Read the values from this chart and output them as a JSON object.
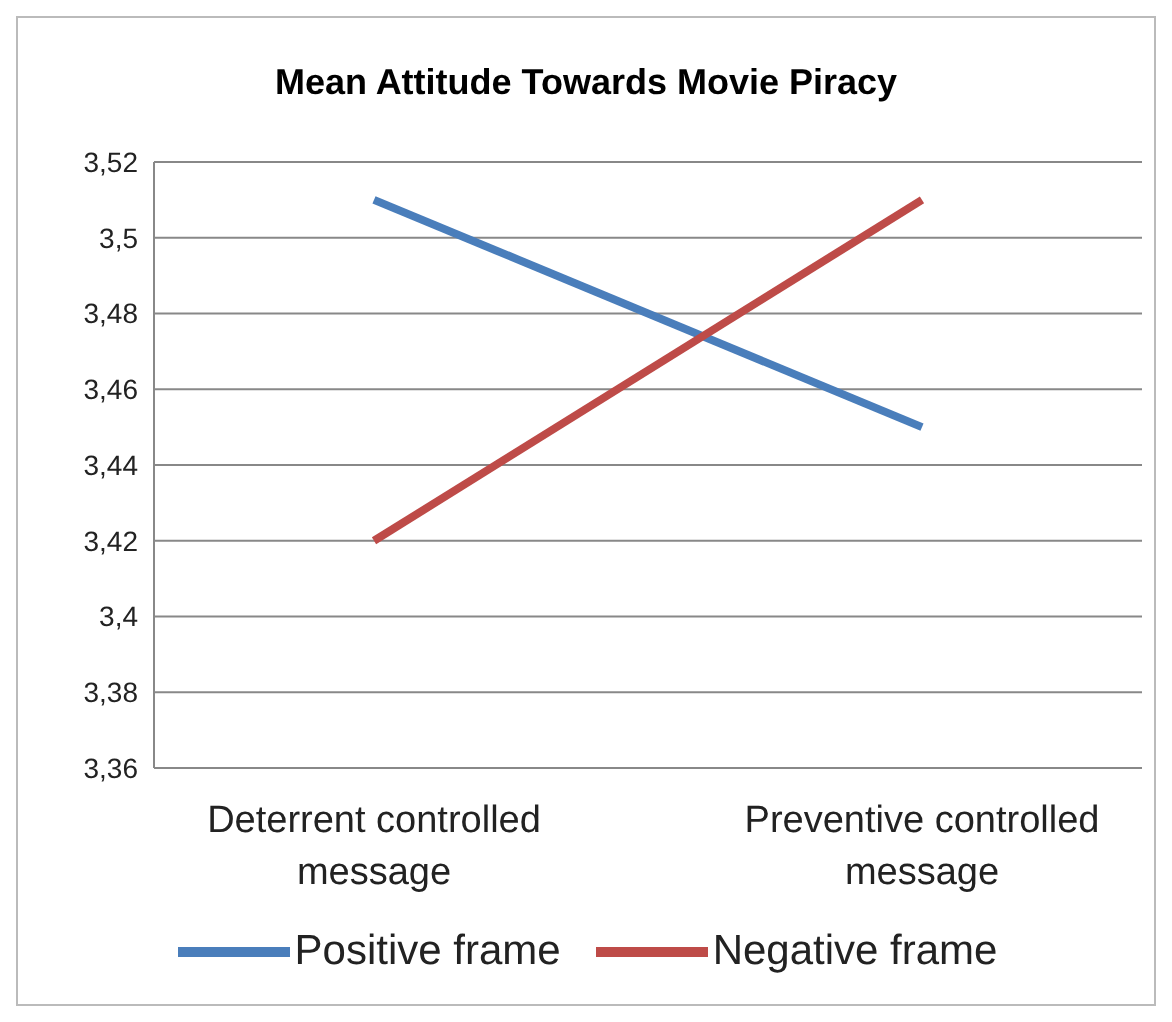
{
  "chart_data": {
    "type": "line",
    "title": "Mean Attitude Towards Movie Piracy",
    "categories": [
      "Deterrent controlled message",
      "Preventive controlled message"
    ],
    "series": [
      {
        "name": "Positive frame",
        "color": "#4a7ebb",
        "values": [
          3.51,
          3.45
        ]
      },
      {
        "name": "Negative frame",
        "color": "#be4b48",
        "values": [
          3.42,
          3.51
        ]
      }
    ],
    "ylim": [
      3.36,
      3.52
    ],
    "yticks": [
      {
        "value": 3.36,
        "label": "3,36"
      },
      {
        "value": 3.38,
        "label": "3,38"
      },
      {
        "value": 3.4,
        "label": "3,4"
      },
      {
        "value": 3.42,
        "label": "3,42"
      },
      {
        "value": 3.44,
        "label": "3,44"
      },
      {
        "value": 3.46,
        "label": "3,46"
      },
      {
        "value": 3.48,
        "label": "3,48"
      },
      {
        "value": 3.5,
        "label": "3,5"
      },
      {
        "value": 3.52,
        "label": "3,52"
      }
    ],
    "grid": "y",
    "legend": "bottom",
    "marker": "none",
    "line_style": "solid"
  }
}
